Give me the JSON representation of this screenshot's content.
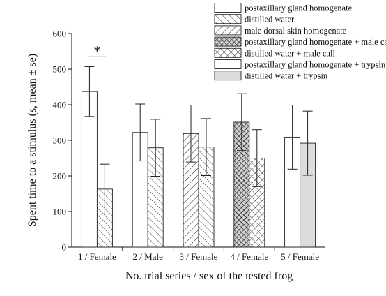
{
  "chart_data": {
    "type": "bar",
    "xlabel": "No. trial series / sex of the tested frog",
    "ylabel": "Spent time to a stimulus (s, mean ± se)",
    "ylim": [
      0,
      600
    ],
    "yticks": [
      0,
      100,
      200,
      300,
      400,
      500,
      600
    ],
    "grid": false,
    "legend_position": "top-right",
    "significance_marker": "*",
    "groups": [
      {
        "label": "1 / Female",
        "bars": [
          {
            "series": "postaxillary gland homogenate",
            "value": 437,
            "se": 70
          },
          {
            "series": "distilled water",
            "value": 163,
            "se": 70
          }
        ]
      },
      {
        "label": "2 / Male",
        "bars": [
          {
            "series": "postaxillary gland homogenate",
            "value": 322,
            "se": 80
          },
          {
            "series": "distilled water",
            "value": 279,
            "se": 80
          }
        ]
      },
      {
        "label": "3 / Female",
        "bars": [
          {
            "series": "male dorsal skin homogenate",
            "value": 319,
            "se": 80
          },
          {
            "series": "distilled water",
            "value": 281,
            "se": 80
          }
        ]
      },
      {
        "label": "4 / Female",
        "bars": [
          {
            "series": "postaxillary gland homogenate + male call",
            "value": 351,
            "se": 80
          },
          {
            "series": "distilled water + male call",
            "value": 250,
            "se": 80
          }
        ]
      },
      {
        "label": "5 / Female",
        "bars": [
          {
            "series": "postaxillary gland homogenate + trypsin",
            "value": 309,
            "se": 90
          },
          {
            "series": "distilled water + trypsin",
            "value": 292,
            "se": 90
          }
        ]
      }
    ],
    "legend": [
      {
        "name": "postaxillary gland homogenate",
        "pattern": "white"
      },
      {
        "name": "distilled water",
        "pattern": "hatch-forward"
      },
      {
        "name": "male dorsal skin homogenate",
        "pattern": "hatch-backward"
      },
      {
        "name": "postaxillary gland homogenate + male call",
        "pattern": "crosshatch-dense"
      },
      {
        "name": "distilled water + male call",
        "pattern": "crosshatch"
      },
      {
        "name": "postaxillary gland homogenate + trypsin",
        "pattern": "white"
      },
      {
        "name": "distilled water + trypsin",
        "pattern": "light-gray"
      }
    ]
  }
}
